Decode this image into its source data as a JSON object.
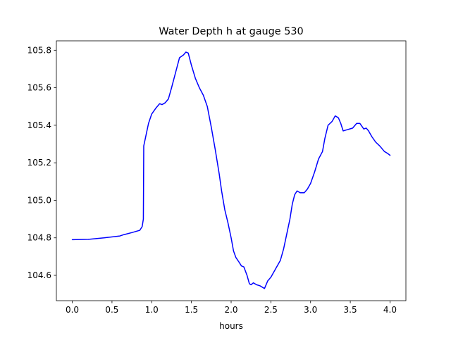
{
  "chart_data": {
    "type": "line",
    "title": "Water Depth h at gauge 530",
    "xlabel": "hours",
    "ylabel": "",
    "xlim": [
      -0.2,
      4.2
    ],
    "ylim": [
      104.465,
      105.85
    ],
    "grid": false,
    "x_ticks": [
      {
        "value": 0.0,
        "label": "0.0"
      },
      {
        "value": 0.5,
        "label": "0.5"
      },
      {
        "value": 1.0,
        "label": "1.0"
      },
      {
        "value": 1.5,
        "label": "1.5"
      },
      {
        "value": 2.0,
        "label": "2.0"
      },
      {
        "value": 2.5,
        "label": "2.5"
      },
      {
        "value": 3.0,
        "label": "3.0"
      },
      {
        "value": 3.5,
        "label": "3.5"
      },
      {
        "value": 4.0,
        "label": "4.0"
      }
    ],
    "y_ticks": [
      {
        "value": 104.6,
        "label": "104.6"
      },
      {
        "value": 104.8,
        "label": "104.8"
      },
      {
        "value": 105.0,
        "label": "105.0"
      },
      {
        "value": 105.2,
        "label": "105.2"
      },
      {
        "value": 105.4,
        "label": "105.4"
      },
      {
        "value": 105.6,
        "label": "105.6"
      },
      {
        "value": 105.8,
        "label": "105.8"
      }
    ],
    "series": [
      {
        "color": "#0000ff",
        "x": [
          0.0,
          0.2,
          0.4,
          0.6,
          0.65,
          0.75,
          0.85,
          0.88,
          0.895,
          0.9,
          0.93,
          0.96,
          1.0,
          1.05,
          1.1,
          1.13,
          1.17,
          1.21,
          1.25,
          1.3,
          1.35,
          1.4,
          1.43,
          1.46,
          1.5,
          1.55,
          1.6,
          1.65,
          1.7,
          1.75,
          1.8,
          1.85,
          1.88,
          1.92,
          1.96,
          2.0,
          2.03,
          2.06,
          2.1,
          2.13,
          2.16,
          2.2,
          2.23,
          2.25,
          2.28,
          2.32,
          2.36,
          2.42,
          2.46,
          2.5,
          2.54,
          2.58,
          2.62,
          2.66,
          2.7,
          2.74,
          2.77,
          2.8,
          2.83,
          2.87,
          2.92,
          2.96,
          3.0,
          3.05,
          3.1,
          3.15,
          3.18,
          3.22,
          3.27,
          3.31,
          3.35,
          3.38,
          3.41,
          3.45,
          3.49,
          3.53,
          3.58,
          3.62,
          3.67,
          3.7,
          3.73,
          3.77,
          3.82,
          3.87,
          3.93,
          3.97,
          4.0
        ],
        "y": [
          104.79,
          104.792,
          104.8,
          104.81,
          104.817,
          104.828,
          104.84,
          104.86,
          104.9,
          105.29,
          105.35,
          105.41,
          105.46,
          105.49,
          105.515,
          105.51,
          105.52,
          105.54,
          105.6,
          105.68,
          105.76,
          105.775,
          105.79,
          105.785,
          105.72,
          105.65,
          105.6,
          105.56,
          105.5,
          105.39,
          105.27,
          105.14,
          105.05,
          104.95,
          104.88,
          104.8,
          104.73,
          104.695,
          104.67,
          104.65,
          104.645,
          104.6,
          104.555,
          104.55,
          104.56,
          104.55,
          104.545,
          104.53,
          104.57,
          104.59,
          104.62,
          104.65,
          104.68,
          104.74,
          104.82,
          104.9,
          104.98,
          105.03,
          105.05,
          105.04,
          105.04,
          105.06,
          105.09,
          105.15,
          105.22,
          105.26,
          105.33,
          105.4,
          105.42,
          105.45,
          105.44,
          105.41,
          105.37,
          105.375,
          105.38,
          105.385,
          105.41,
          105.41,
          105.38,
          105.385,
          105.37,
          105.34,
          105.31,
          105.29,
          105.26,
          105.25,
          105.24
        ]
      }
    ]
  }
}
